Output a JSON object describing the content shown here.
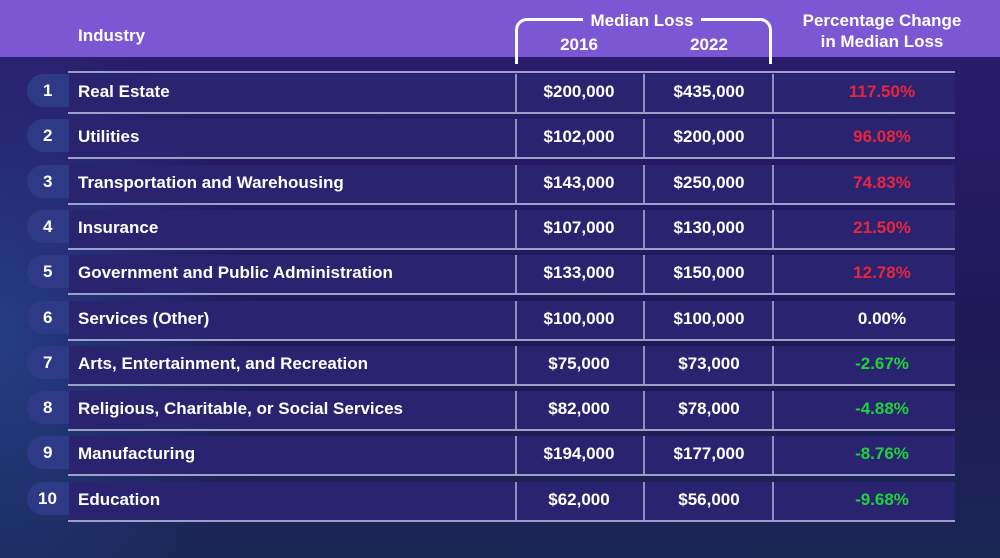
{
  "chart_data": {
    "type": "table",
    "header": {
      "industry": "Industry",
      "median_loss": "Median Loss",
      "year_1": "2016",
      "year_2": "2022",
      "pct_line_1": "Percentage Change",
      "pct_line_2": "in Median Loss"
    },
    "colors": {
      "header_bg": "#7b57d3",
      "increase": "#e8243f",
      "neutral": "#ffffff",
      "decrease": "#1fd13a"
    },
    "rows": [
      {
        "rank": "1",
        "industry": "Real Estate",
        "loss_2016": "$200,000",
        "loss_2022": "$435,000",
        "pct_change": "117.50%",
        "direction": "increase"
      },
      {
        "rank": "2",
        "industry": "Utilities",
        "loss_2016": "$102,000",
        "loss_2022": "$200,000",
        "pct_change": "96.08%",
        "direction": "increase"
      },
      {
        "rank": "3",
        "industry": "Transportation and Warehousing",
        "loss_2016": "$143,000",
        "loss_2022": "$250,000",
        "pct_change": "74.83%",
        "direction": "increase"
      },
      {
        "rank": "4",
        "industry": "Insurance",
        "loss_2016": "$107,000",
        "loss_2022": "$130,000",
        "pct_change": "21.50%",
        "direction": "increase"
      },
      {
        "rank": "5",
        "industry": "Government and Public Administration",
        "loss_2016": "$133,000",
        "loss_2022": "$150,000",
        "pct_change": "12.78%",
        "direction": "increase"
      },
      {
        "rank": "6",
        "industry": "Services (Other)",
        "loss_2016": "$100,000",
        "loss_2022": "$100,000",
        "pct_change": "0.00%",
        "direction": "neutral"
      },
      {
        "rank": "7",
        "industry": "Arts, Entertainment, and Recreation",
        "loss_2016": "$75,000",
        "loss_2022": "$73,000",
        "pct_change": "-2.67%",
        "direction": "decrease"
      },
      {
        "rank": "8",
        "industry": "Religious, Charitable, or Social Services",
        "loss_2016": "$82,000",
        "loss_2022": "$78,000",
        "pct_change": "-4.88%",
        "direction": "decrease"
      },
      {
        "rank": "9",
        "industry": "Manufacturing",
        "loss_2016": "$194,000",
        "loss_2022": "$177,000",
        "pct_change": "-8.76%",
        "direction": "decrease"
      },
      {
        "rank": "10",
        "industry": "Education",
        "loss_2016": "$62,000",
        "loss_2022": "$56,000",
        "pct_change": "-9.68%",
        "direction": "decrease"
      }
    ]
  }
}
